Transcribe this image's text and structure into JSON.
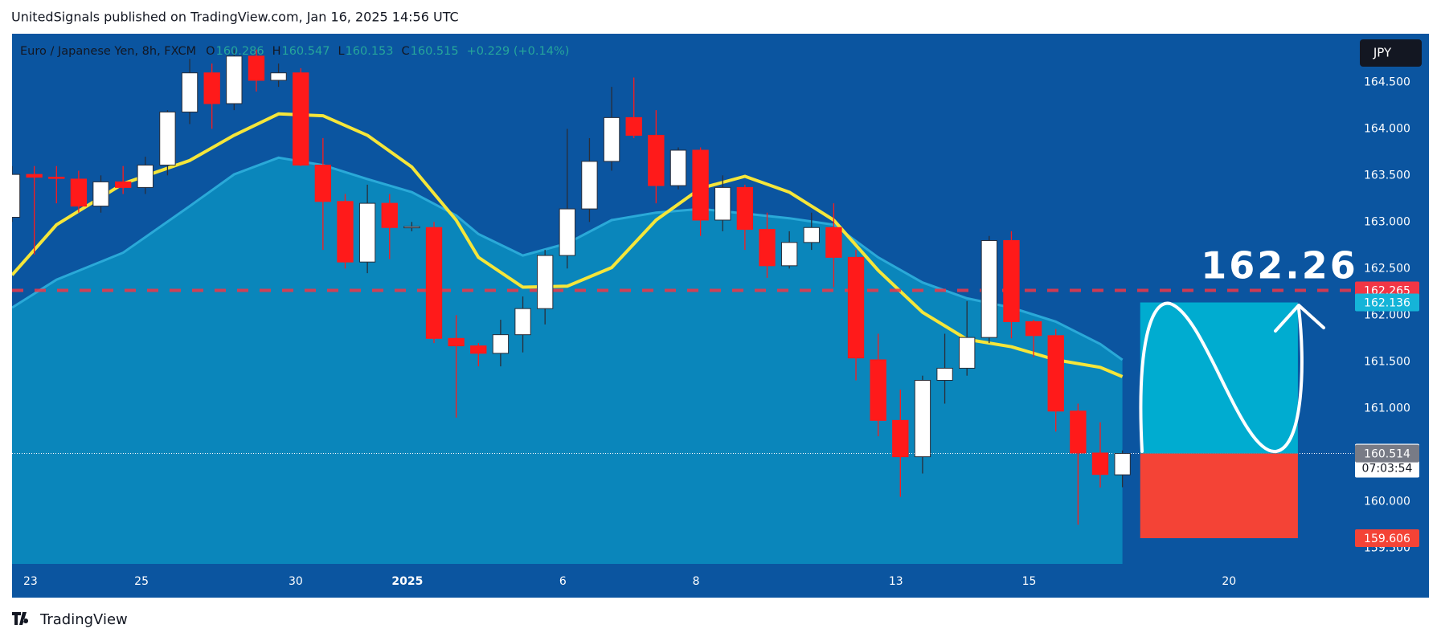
{
  "published": "UnitedSignals published on TradingView.com, Jan 16, 2025 14:56 UTC",
  "brand": "TradingView",
  "chart_data": {
    "type": "candlestick",
    "title": "Euro / Japanese Yen, 8h, FXCM",
    "ohlc_letters": [
      "O",
      "H",
      "L",
      "C"
    ],
    "change": "+0.229 (+0.14%)",
    "currency": "JPY",
    "annotation": "162.26",
    "open": [
      163.05,
      163.51,
      163.48,
      163.46,
      163.17,
      163.43,
      163.37,
      163.61,
      164.18,
      164.6,
      164.27,
      164.78,
      164.52,
      164.6,
      163.61,
      163.22,
      162.57,
      163.2,
      162.94,
      162.94,
      161.75,
      161.67,
      161.59,
      161.79,
      162.07,
      162.64,
      163.14,
      163.65,
      164.12,
      163.93,
      163.39,
      163.77,
      163.02,
      163.37,
      162.92,
      162.53,
      162.78,
      162.94,
      162.62,
      161.52,
      160.87,
      160.48,
      161.3,
      161.43,
      161.76,
      162.8,
      161.93,
      161.78,
      160.97,
      160.52,
      160.286
    ],
    "high": [
      163.6,
      163.6,
      163.6,
      163.55,
      163.5,
      163.6,
      163.7,
      164.2,
      164.75,
      164.7,
      164.85,
      164.85,
      164.7,
      164.65,
      163.9,
      163.3,
      163.4,
      163.3,
      163.0,
      163.0,
      162.0,
      161.7,
      161.95,
      162.2,
      162.7,
      164.0,
      163.9,
      164.45,
      164.55,
      164.2,
      163.8,
      163.8,
      163.5,
      163.4,
      163.1,
      162.9,
      163.1,
      163.2,
      162.7,
      161.8,
      161.2,
      161.35,
      161.8,
      162.15,
      162.85,
      162.9,
      161.95,
      161.85,
      161.05,
      160.85,
      160.547
    ],
    "low": [
      163.0,
      162.65,
      163.2,
      163.1,
      163.1,
      163.3,
      163.3,
      163.5,
      164.05,
      164.0,
      164.2,
      164.4,
      164.45,
      163.6,
      162.7,
      162.5,
      162.45,
      162.6,
      162.9,
      161.7,
      160.9,
      161.45,
      161.45,
      161.6,
      161.9,
      162.5,
      163.0,
      163.55,
      163.9,
      163.2,
      163.35,
      162.85,
      162.9,
      162.7,
      162.4,
      162.5,
      162.7,
      162.3,
      161.3,
      160.7,
      160.05,
      160.3,
      161.05,
      161.35,
      161.7,
      161.75,
      161.55,
      160.75,
      159.75,
      160.15,
      160.153
    ],
    "close": [
      163.51,
      163.48,
      163.47,
      163.17,
      163.43,
      163.37,
      163.61,
      164.18,
      164.6,
      164.27,
      164.78,
      164.52,
      164.6,
      163.61,
      163.22,
      162.57,
      163.2,
      162.94,
      162.95,
      161.75,
      161.67,
      161.59,
      161.79,
      162.07,
      162.64,
      163.14,
      163.65,
      164.12,
      163.93,
      163.39,
      163.77,
      163.02,
      163.37,
      162.92,
      162.53,
      162.78,
      162.94,
      162.62,
      161.54,
      160.87,
      160.48,
      161.3,
      161.43,
      161.76,
      162.8,
      161.93,
      161.78,
      160.97,
      160.52,
      160.29,
      160.515
    ],
    "colors": {
      "up": "#ffffff",
      "down": "#ff1a1a",
      "background": "#0b55a0",
      "axis_text": "#ffffff"
    },
    "series": [
      {
        "style": "area",
        "color": "#0a86bb",
        "edge": "#2aa9d8",
        "x": [
          0,
          2,
          5,
          8,
          10,
          12,
          14,
          16,
          18,
          20,
          21,
          23,
          25,
          27,
          29,
          31,
          33,
          35,
          37,
          39,
          41,
          43,
          45,
          47,
          49,
          50
        ],
        "values": [
          162.08,
          162.38,
          162.67,
          163.17,
          163.51,
          163.69,
          163.61,
          163.46,
          163.32,
          163.07,
          162.87,
          162.64,
          162.77,
          163.02,
          163.1,
          163.14,
          163.09,
          163.04,
          162.97,
          162.62,
          162.35,
          162.18,
          162.08,
          161.93,
          161.69,
          161.52
        ]
      },
      {
        "style": "line",
        "color": "#f5e63a",
        "x": [
          0,
          2,
          5,
          8,
          10,
          12,
          14,
          16,
          18,
          20,
          21,
          23,
          25,
          27,
          29,
          31,
          33,
          35,
          37,
          39,
          41,
          43,
          45,
          47,
          49,
          50
        ],
        "values": [
          162.43,
          162.97,
          163.41,
          163.66,
          163.93,
          164.16,
          164.14,
          163.93,
          163.59,
          163.02,
          162.62,
          162.3,
          162.31,
          162.51,
          163.02,
          163.36,
          163.49,
          163.32,
          163.02,
          162.48,
          162.03,
          161.74,
          161.66,
          161.52,
          161.44,
          161.34
        ]
      }
    ],
    "level": {
      "value": 162.265,
      "color": "#f23645"
    },
    "bid": 160.514,
    "countdown": "07:03:54",
    "position": {
      "target": 162.136,
      "stop": 159.606,
      "x": [
        50.8,
        57.9
      ],
      "target_color": "#00acd0",
      "stop_color": "#f44336",
      "target_label_color": "#15b4d8"
    },
    "xlim": [
      0,
      60.4
    ],
    "xticks": [
      {
        "value": 0.83,
        "label": "23"
      },
      {
        "value": 5.83,
        "label": "25"
      },
      {
        "value": 12.77,
        "label": "30"
      },
      {
        "value": 17.8,
        "label": "2025"
      },
      {
        "value": 24.8,
        "label": "6"
      },
      {
        "value": 30.8,
        "label": "8"
      },
      {
        "value": 39.8,
        "label": "13"
      },
      {
        "value": 45.8,
        "label": "15"
      },
      {
        "value": 54.8,
        "label": "20"
      }
    ],
    "ylim": [
      159.33,
      165.02
    ],
    "yticks": [
      {
        "value": 159.5,
        "label": "159.500"
      },
      {
        "value": 160,
        "label": "160.000"
      },
      {
        "value": 160.5,
        "label": "160.500"
      },
      {
        "value": 161,
        "label": "161.000"
      },
      {
        "value": 161.5,
        "label": "161.500"
      },
      {
        "value": 162,
        "label": "162.000"
      },
      {
        "value": 162.5,
        "label": "162.500"
      },
      {
        "value": 163,
        "label": "163.000"
      },
      {
        "value": 163.5,
        "label": "163.500"
      },
      {
        "value": 164,
        "label": "164.000"
      },
      {
        "value": 164.5,
        "label": "164.500"
      }
    ]
  }
}
